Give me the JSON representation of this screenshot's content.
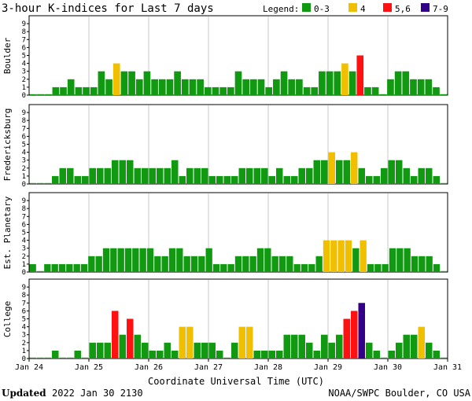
{
  "header": {
    "title": "3-hour K-indices for Last 7 days",
    "legend_label": "Legend:",
    "legend": [
      {
        "label": "0-3",
        "color": "#119911"
      },
      {
        "label": "4",
        "color": "#f0c000"
      },
      {
        "label": "5,6",
        "color": "#ff1111"
      },
      {
        "label": "7-9",
        "color": "#330088"
      }
    ]
  },
  "chart_data": [
    {
      "type": "bar",
      "name": "Boulder",
      "ylim": [
        0,
        9
      ],
      "values": [
        0,
        0,
        0,
        1,
        1,
        2,
        1,
        1,
        1,
        3,
        2,
        4,
        3,
        3,
        2,
        3,
        2,
        2,
        2,
        3,
        2,
        2,
        2,
        1,
        1,
        1,
        1,
        3,
        2,
        2,
        2,
        1,
        2,
        3,
        2,
        2,
        1,
        1,
        3,
        3,
        3,
        4,
        3,
        5,
        1,
        1,
        0,
        2,
        3,
        3,
        2,
        2,
        2,
        1,
        0
      ]
    },
    {
      "type": "bar",
      "name": "Fredericksburg",
      "ylim": [
        0,
        9
      ],
      "values": [
        0,
        0,
        0,
        1,
        2,
        2,
        1,
        1,
        2,
        2,
        2,
        3,
        3,
        3,
        2,
        2,
        2,
        2,
        2,
        3,
        1,
        2,
        2,
        2,
        1,
        1,
        1,
        1,
        2,
        2,
        2,
        2,
        1,
        2,
        1,
        1,
        2,
        2,
        3,
        3,
        4,
        3,
        3,
        4,
        2,
        1,
        1,
        2,
        3,
        3,
        2,
        1,
        2,
        2,
        1,
        0
      ]
    },
    {
      "type": "bar",
      "name": "Est. Planetary",
      "ylim": [
        0,
        9
      ],
      "values": [
        1,
        0,
        1,
        1,
        1,
        1,
        1,
        1,
        2,
        2,
        3,
        3,
        3,
        3,
        3,
        3,
        3,
        2,
        2,
        3,
        3,
        2,
        2,
        2,
        3,
        1,
        1,
        1,
        2,
        2,
        2,
        3,
        3,
        2,
        2,
        2,
        1,
        1,
        1,
        2,
        4,
        4,
        4,
        4,
        3,
        4,
        1,
        1,
        1,
        3,
        3,
        3,
        2,
        2,
        2,
        1,
        0
      ]
    },
    {
      "type": "bar",
      "name": "College",
      "ylim": [
        0,
        9
      ],
      "values": [
        0,
        0,
        0,
        1,
        0,
        0,
        1,
        0,
        2,
        2,
        2,
        6,
        3,
        5,
        3,
        2,
        1,
        1,
        2,
        1,
        4,
        4,
        2,
        2,
        2,
        1,
        0,
        2,
        4,
        4,
        1,
        1,
        1,
        1,
        3,
        3,
        3,
        2,
        1,
        3,
        2,
        3,
        5,
        6,
        7,
        2,
        1,
        0,
        1,
        2,
        3,
        3,
        4,
        2,
        1,
        0
      ]
    }
  ],
  "x_axis": {
    "tick_labels": [
      "Jan 24",
      "Jan 25",
      "Jan 26",
      "Jan 27",
      "Jan 28",
      "Jan 29",
      "Jan 30",
      "Jan 31"
    ],
    "title": "Coordinate Universal Time (UTC)"
  },
  "y_axis": {
    "ticks": [
      0,
      1,
      2,
      3,
      4,
      5,
      6,
      7,
      8,
      9
    ]
  },
  "footer": {
    "updated_label": "Updated",
    "updated_value": "2022 Jan 30 2130",
    "source": "NOAA/SWPC Boulder, CO USA"
  }
}
